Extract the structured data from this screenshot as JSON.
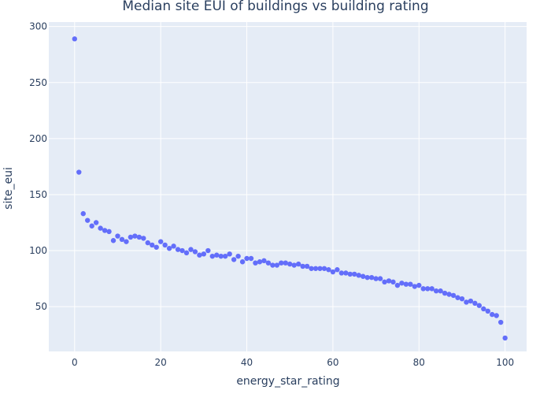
{
  "chart_data": {
    "type": "scatter",
    "title": "Median site EUI of buildings vs building rating",
    "xlabel": "energy_star_rating",
    "ylabel": "site_eui",
    "xlim": [
      -6,
      105
    ],
    "ylim": [
      10,
      304
    ],
    "xticks": [
      0,
      20,
      40,
      60,
      80,
      100
    ],
    "yticks": [
      50,
      100,
      150,
      200,
      250,
      300
    ],
    "grid": true,
    "legend": false,
    "colors": {
      "marker": "#636efa",
      "plot_bg": "#e5ecf6",
      "grid": "#ffffff",
      "text": "#2a3f5f"
    },
    "series": [
      {
        "x": [
          0,
          1,
          2,
          3,
          4,
          5,
          6,
          7,
          8,
          9,
          10,
          11,
          12,
          13,
          14,
          15,
          16,
          17,
          18,
          19,
          20,
          21,
          22,
          23,
          24,
          25,
          26,
          27,
          28,
          29,
          30,
          31,
          32,
          33,
          34,
          35,
          36,
          37,
          38,
          39,
          40,
          41,
          42,
          43,
          44,
          45,
          46,
          47,
          48,
          49,
          50,
          51,
          52,
          53,
          54,
          55,
          56,
          57,
          58,
          59,
          60,
          61,
          62,
          63,
          64,
          65,
          66,
          67,
          68,
          69,
          70,
          71,
          72,
          73,
          74,
          75,
          76,
          77,
          78,
          79,
          80,
          81,
          82,
          83,
          84,
          85,
          86,
          87,
          88,
          89,
          90,
          91,
          92,
          93,
          94,
          95,
          96,
          97,
          98,
          99,
          100
        ],
        "y": [
          289,
          170,
          133,
          127,
          122,
          125,
          120,
          118,
          117,
          109,
          113,
          110,
          108,
          112,
          113,
          112,
          111,
          107,
          105,
          103,
          108,
          105,
          102,
          104,
          101,
          100,
          98,
          101,
          99,
          96,
          97,
          100,
          95,
          96,
          95,
          95,
          97,
          92,
          95,
          90,
          93,
          93,
          89,
          90,
          91,
          89,
          87,
          87,
          89,
          89,
          88,
          87,
          88,
          86,
          86,
          84,
          84,
          84,
          84,
          83,
          81,
          83,
          80,
          80,
          79,
          79,
          78,
          77,
          76,
          76,
          75,
          75,
          72,
          73,
          72,
          69,
          71,
          70,
          70,
          68,
          69,
          66,
          66,
          66,
          64,
          64,
          62,
          61,
          60,
          58,
          57,
          54,
          55,
          53,
          51,
          48,
          46,
          43,
          42,
          36,
          22
        ]
      }
    ]
  }
}
